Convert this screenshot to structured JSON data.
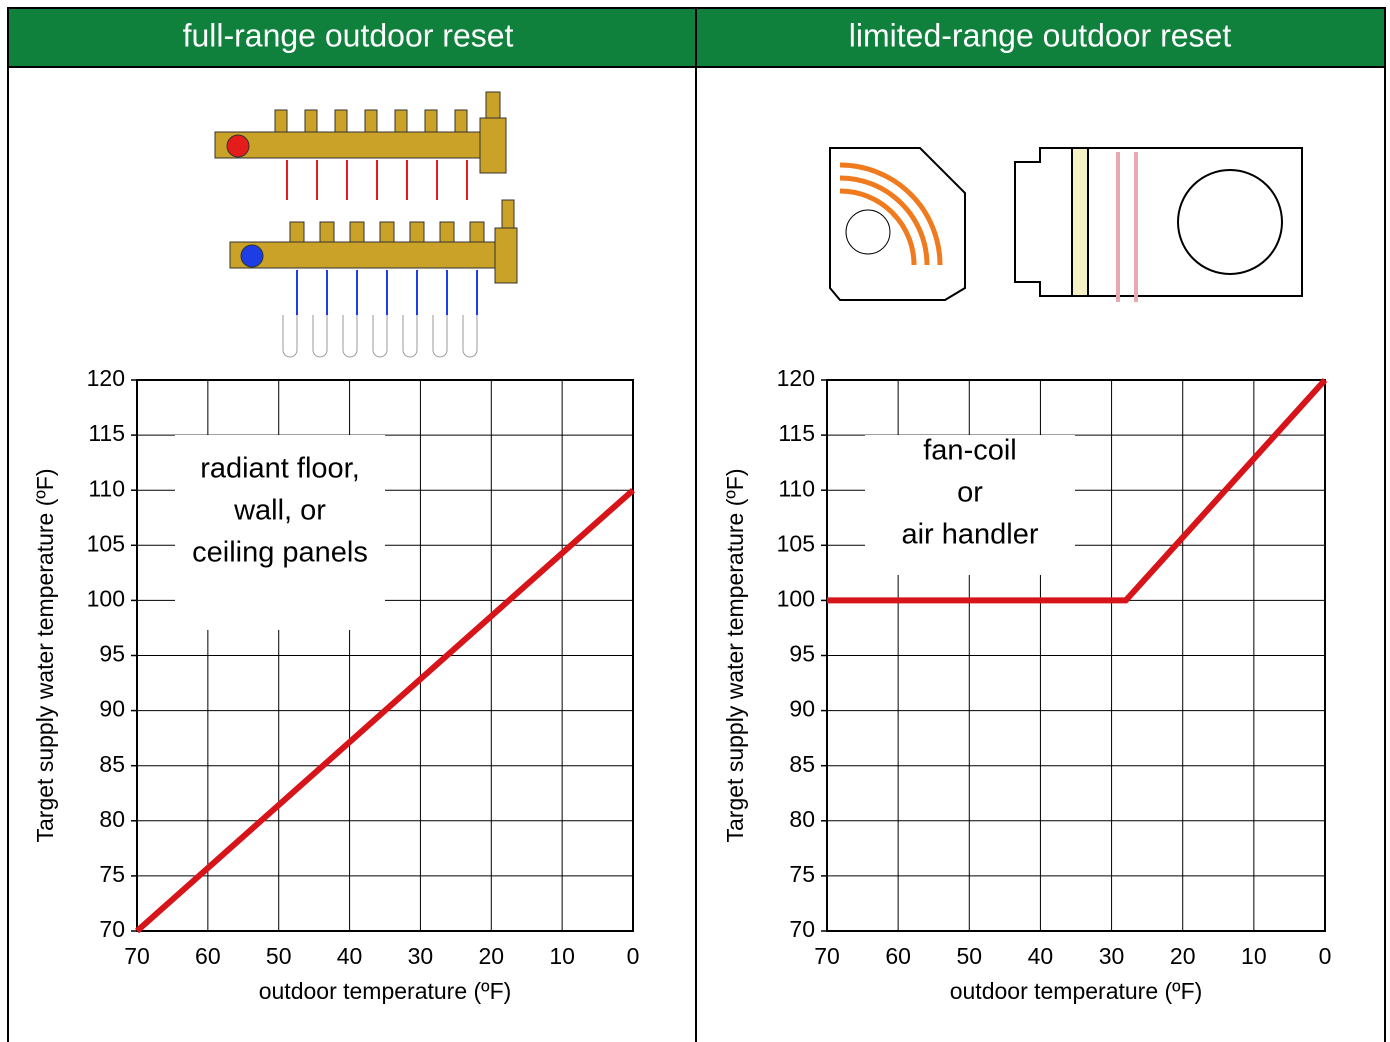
{
  "chart_data": [
    {
      "type": "line",
      "title": "full-range outdoor reset",
      "xlabel": "outdoor temperature (ºF)",
      "ylabel": "Target supply water temperature (ºF)",
      "annotation": [
        "radiant floor,",
        "wall, or",
        "ceiling panels"
      ],
      "x": [
        70,
        0
      ],
      "values": [
        70,
        110
      ],
      "color": "#d7141a",
      "xlim": [
        70,
        0
      ],
      "xticks": [
        70,
        60,
        50,
        40,
        30,
        20,
        10,
        0
      ],
      "ylim": [
        70,
        120
      ],
      "yticks": [
        70,
        75,
        80,
        85,
        90,
        95,
        100,
        105,
        110,
        115,
        120
      ],
      "grid": true
    },
    {
      "type": "line",
      "title": "limited-range outdoor reset",
      "xlabel": "outdoor temperature (ºF)",
      "ylabel": "Target supply water temperature (ºF)",
      "annotation": [
        "fan-coil",
        "or",
        "air handler"
      ],
      "x": [
        70,
        28,
        0
      ],
      "values": [
        100,
        100,
        120
      ],
      "color": "#d7141a",
      "xlim": [
        70,
        0
      ],
      "xticks": [
        70,
        60,
        50,
        40,
        30,
        20,
        10,
        0
      ],
      "ylim": [
        70,
        120
      ],
      "yticks": [
        70,
        75,
        80,
        85,
        90,
        95,
        100,
        105,
        110,
        115,
        120
      ],
      "grid": true
    }
  ]
}
